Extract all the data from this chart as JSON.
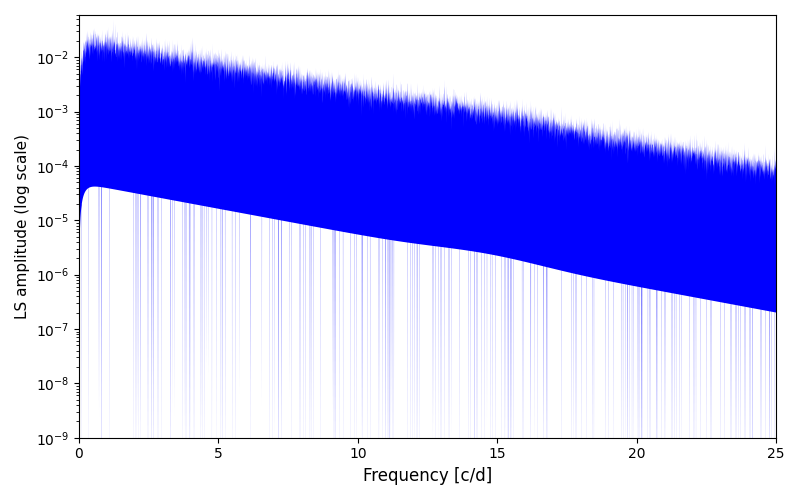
{
  "xlabel": "Frequency [c/d]",
  "ylabel": "LS amplitude (log scale)",
  "xlim": [
    0,
    25
  ],
  "ylim": [
    1e-09,
    0.06
  ],
  "line_color": "#0000ff",
  "background_color": "#ffffff",
  "figsize": [
    8.0,
    5.0
  ],
  "dpi": 100,
  "seed": 12345,
  "n_points": 8000,
  "freq_max": 25.0,
  "xticks": [
    0,
    5,
    10,
    15,
    20,
    25
  ]
}
